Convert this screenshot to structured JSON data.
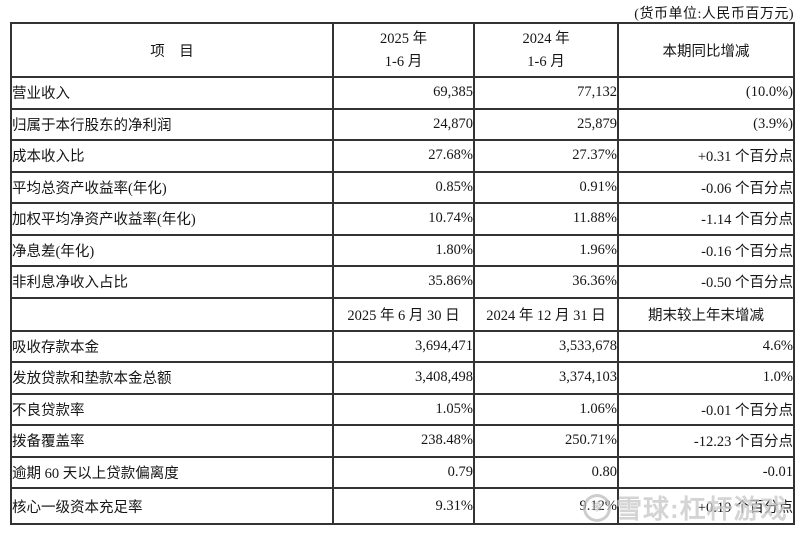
{
  "unit_note": "(货币单位:人民币百万元)",
  "watermark": {
    "logo_glyph": "❅",
    "text": "雪球:杠杆游戏"
  },
  "table": {
    "period_header": {
      "item": "项　目",
      "col1_top": "2025 年",
      "col1_bottom": "1-6 月",
      "col2_top": "2024 年",
      "col2_bottom": "1-6 月",
      "change": "本期同比增减"
    },
    "period_rows": [
      {
        "label": "营业收入",
        "v1": "69,385",
        "v2": "77,132",
        "chg": "(10.0%)"
      },
      {
        "label": "归属于本行股东的净利润",
        "v1": "24,870",
        "v2": "25,879",
        "chg": "(3.9%)"
      },
      {
        "label": "成本收入比",
        "v1": "27.68%",
        "v2": "27.37%",
        "chg": "+0.31 个百分点"
      },
      {
        "label": "平均总资产收益率(年化)",
        "v1": "0.85%",
        "v2": "0.91%",
        "chg": "-0.06 个百分点"
      },
      {
        "label": "加权平均净资产收益率(年化)",
        "v1": "10.74%",
        "v2": "11.88%",
        "chg": "-1.14 个百分点"
      },
      {
        "label": "净息差(年化)",
        "v1": "1.80%",
        "v2": "1.96%",
        "chg": "-0.16 个百分点"
      },
      {
        "label": "非利息净收入占比",
        "v1": "35.86%",
        "v2": "36.36%",
        "chg": "-0.50 个百分点"
      }
    ],
    "date_header": {
      "item": "",
      "col1": "2025 年 6 月 30 日",
      "col2": "2024 年 12 月 31 日",
      "change": "期末较上年末增减"
    },
    "date_rows": [
      {
        "label": "吸收存款本金",
        "v1": "3,694,471",
        "v2": "3,533,678",
        "chg": "4.6%"
      },
      {
        "label": "发放贷款和垫款本金总额",
        "v1": "3,408,498",
        "v2": "3,374,103",
        "chg": "1.0%"
      },
      {
        "label": "不良贷款率",
        "v1": "1.05%",
        "v2": "1.06%",
        "chg": "-0.01 个百分点"
      },
      {
        "label": "拨备覆盖率",
        "v1": "238.48%",
        "v2": "250.71%",
        "chg": "-12.23 个百分点"
      },
      {
        "label": "逾期 60 天以上贷款偏离度",
        "v1": "0.79",
        "v2": "0.80",
        "chg": "-0.01"
      },
      {
        "label": "核心一级资本充足率",
        "v1": "9.31%",
        "v2": "9.12%",
        "chg": "+0.19 个百分点"
      }
    ]
  }
}
